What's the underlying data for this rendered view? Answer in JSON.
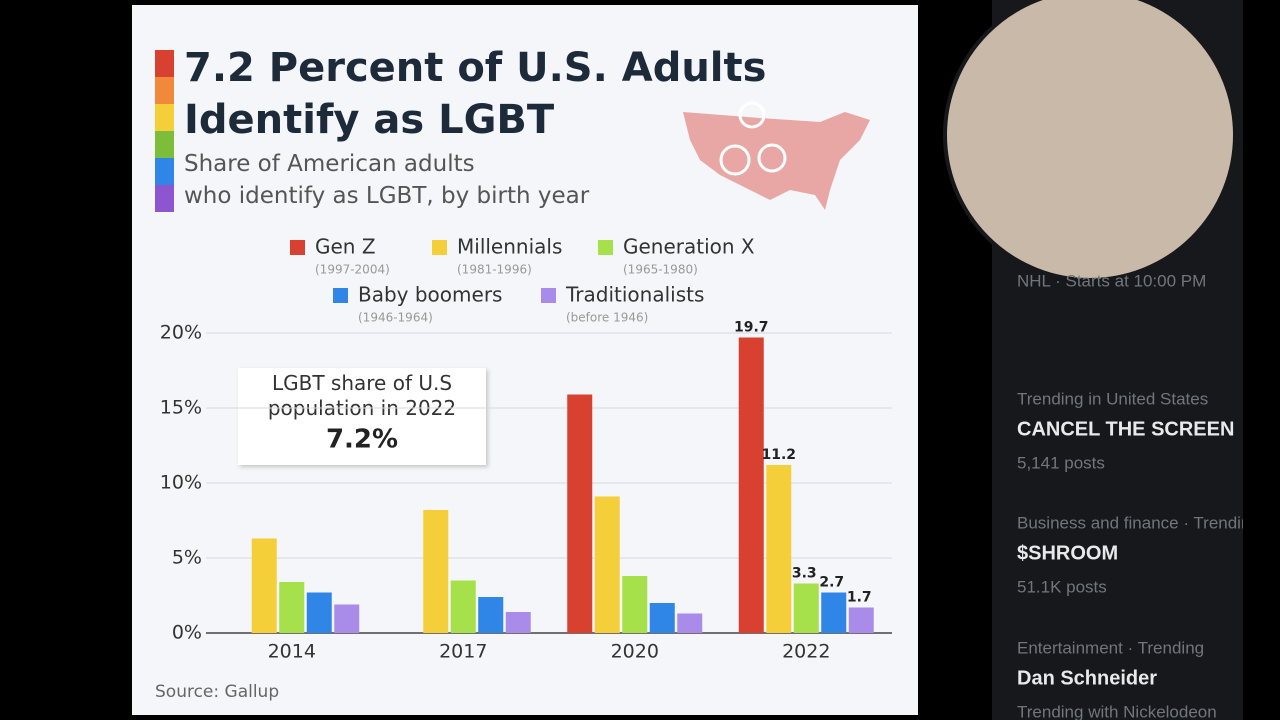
{
  "chart_data": {
    "type": "bar",
    "title": "7.2 Percent of U.S. Adults Identify as LGBT",
    "subtitle": "Share of American adults who identify as LGBT, by birth year",
    "categories": [
      "2014",
      "2017",
      "2020",
      "2022"
    ],
    "series": [
      {
        "name": "Gen Z",
        "years": "(1997-2004)",
        "color": "#d8412f",
        "values": [
          null,
          null,
          15.9,
          19.7
        ]
      },
      {
        "name": "Millennials",
        "years": "(1981-1996)",
        "color": "#f5cf3a",
        "values": [
          6.3,
          8.2,
          9.1,
          11.2
        ]
      },
      {
        "name": "Generation X",
        "years": "(1965-1980)",
        "color": "#a6e04a",
        "values": [
          3.4,
          3.5,
          3.8,
          3.3
        ]
      },
      {
        "name": "Baby boomers",
        "years": "(1946-1964)",
        "color": "#2f86e6",
        "values": [
          2.7,
          2.4,
          2.0,
          2.7
        ]
      },
      {
        "name": "Traditionalists",
        "years": "(before 1946)",
        "color": "#a98bea",
        "values": [
          1.9,
          1.4,
          1.3,
          1.7
        ]
      }
    ],
    "ylim": [
      0,
      20
    ],
    "yticks": [
      {
        "value": 0,
        "label": "0%"
      },
      {
        "value": 5,
        "label": "5%"
      },
      {
        "value": 10,
        "label": "10%"
      },
      {
        "value": 15,
        "label": "15%"
      },
      {
        "value": 20,
        "label": "20%"
      }
    ],
    "grid": true,
    "annotation": {
      "text": "LGBT share of U.S population in 2022",
      "value": "7.2%"
    },
    "source": "Source: Gallup"
  },
  "sidebar": {
    "items": [
      {
        "meta": "NHL · Starts at 10:00 PM"
      },
      {
        "meta": "Trending in United States",
        "topic": "CANCEL THE SCREEN",
        "posts": "5,141 posts"
      },
      {
        "meta": "Business and finance · Trending",
        "topic": "$SHROOM",
        "posts": "51.1K posts"
      },
      {
        "meta": "Entertainment · Trending",
        "topic": "Dan Schneider",
        "posts": "Trending with Nickelodeon"
      }
    ]
  }
}
